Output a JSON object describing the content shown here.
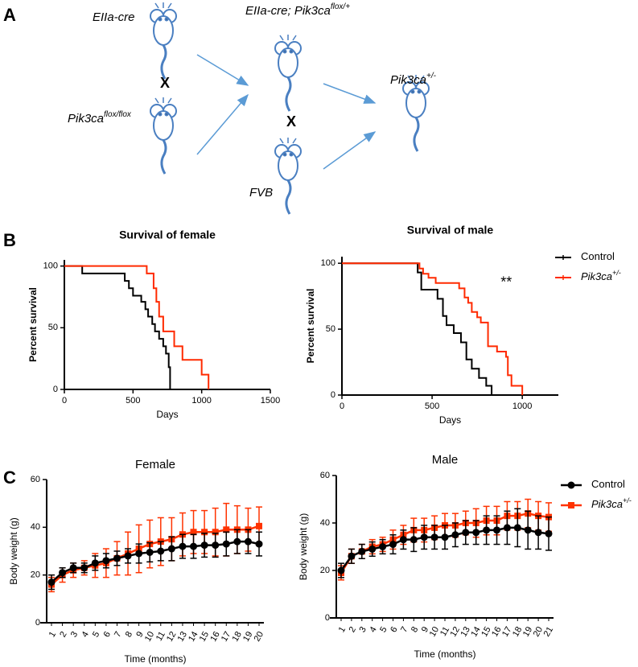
{
  "panel_labels": [
    "A",
    "B",
    "C"
  ],
  "diagram": {
    "parent1": {
      "text": "EIIa-cre"
    },
    "parent2": {
      "text": "Pik3ca",
      "sup": "flox/flox"
    },
    "offspring1": {
      "text": "EIIa-cre; Pik3ca",
      "sup": "flox/+"
    },
    "parent3": {
      "text": "FVB"
    },
    "offspring2": {
      "text": "Pik3ca",
      "sup": "+/-"
    },
    "cross_signs": [
      "X",
      "X"
    ]
  },
  "chart_data": [
    {
      "type": "step",
      "title": "Survival of female",
      "xlabel": "Days",
      "ylabel": "Percent survival",
      "xlim": [
        0,
        1500
      ],
      "xticks": [
        0,
        500,
        1000,
        1500
      ],
      "ylim": [
        0,
        105
      ],
      "yticks": [
        0,
        50,
        100
      ],
      "series": [
        {
          "color": "#000000",
          "x": [
            0,
            130,
            130,
            440,
            440,
            470,
            470,
            500,
            500,
            560,
            560,
            590,
            590,
            610,
            610,
            640,
            640,
            660,
            660,
            690,
            690,
            720,
            720,
            740,
            740,
            760,
            760,
            770,
            770
          ],
          "values": [
            100,
            100,
            94,
            94,
            88,
            88,
            82,
            82,
            76,
            76,
            71,
            71,
            65,
            65,
            59,
            59,
            53,
            53,
            47,
            47,
            41,
            41,
            35,
            35,
            29,
            29,
            18,
            18,
            0
          ]
        },
        {
          "color": "#ff2a00",
          "x": [
            0,
            600,
            600,
            650,
            650,
            670,
            670,
            690,
            690,
            720,
            720,
            800,
            800,
            860,
            860,
            1000,
            1000,
            1050,
            1050
          ],
          "values": [
            100,
            100,
            94,
            94,
            82,
            82,
            71,
            71,
            59,
            59,
            47,
            47,
            35,
            35,
            24,
            24,
            12,
            12,
            0
          ]
        }
      ]
    },
    {
      "type": "step",
      "title": "Survival of male",
      "xlabel": "Days",
      "ylabel": "Percent survival",
      "xlim": [
        0,
        1200
      ],
      "xticks": [
        0,
        500,
        1000
      ],
      "ylim": [
        0,
        105
      ],
      "yticks": [
        0,
        50,
        100
      ],
      "annotation": "**",
      "legend": "right",
      "series": [
        {
          "name": "Control",
          "color": "#000000",
          "x": [
            0,
            420,
            420,
            440,
            440,
            530,
            530,
            560,
            560,
            580,
            580,
            620,
            620,
            660,
            660,
            690,
            690,
            720,
            720,
            760,
            760,
            800,
            800,
            830,
            830
          ],
          "values": [
            100,
            100,
            93,
            93,
            80,
            80,
            73,
            73,
            60,
            60,
            53,
            53,
            47,
            47,
            40,
            40,
            27,
            27,
            20,
            20,
            13,
            13,
            7,
            7,
            0
          ]
        },
        {
          "name": "Pik3ca",
          "name_sup": "+/-",
          "color": "#ff2a00",
          "x": [
            0,
            430,
            430,
            450,
            450,
            480,
            480,
            520,
            520,
            650,
            650,
            680,
            680,
            700,
            700,
            720,
            720,
            750,
            750,
            770,
            770,
            810,
            810,
            860,
            860,
            910,
            910,
            920,
            920,
            940,
            940,
            1000,
            1000
          ],
          "values": [
            100,
            100,
            96,
            96,
            92,
            92,
            89,
            89,
            85,
            85,
            81,
            81,
            74,
            74,
            70,
            70,
            63,
            63,
            59,
            59,
            55,
            55,
            37,
            37,
            33,
            33,
            29,
            29,
            15,
            15,
            7,
            7,
            0
          ]
        }
      ]
    },
    {
      "type": "line",
      "title": "Female",
      "xlabel": "Time (months)",
      "ylabel": "Body weight (g)",
      "categories": [
        1,
        2,
        3,
        4,
        5,
        6,
        7,
        8,
        9,
        10,
        11,
        12,
        13,
        14,
        15,
        16,
        17,
        18,
        19,
        20
      ],
      "ylim": [
        0,
        60
      ],
      "yticks": [
        0,
        20,
        40,
        60
      ],
      "series": [
        {
          "color": "#ff3300",
          "marker": "square",
          "values": [
            16,
            20,
            22,
            23,
            24,
            25,
            27,
            29,
            31,
            33,
            34,
            35,
            37,
            38,
            38,
            38,
            39,
            39,
            39,
            40.5
          ],
          "errors": [
            3,
            3,
            3,
            3,
            5,
            6,
            7,
            9,
            10,
            10,
            10,
            9,
            9,
            9,
            9,
            10,
            11,
            10,
            9,
            8
          ]
        },
        {
          "color": "#000000",
          "marker": "circle",
          "values": [
            17,
            21,
            23,
            23,
            25,
            26,
            27,
            28,
            29,
            29.5,
            30,
            31,
            32,
            32,
            32.5,
            32.5,
            33,
            34,
            34,
            33
          ],
          "errors": [
            3,
            2,
            2,
            2,
            3,
            3,
            3,
            3,
            4,
            4,
            4,
            5,
            5,
            5,
            5,
            5,
            5,
            5,
            5,
            5
          ]
        }
      ]
    },
    {
      "type": "line",
      "title": "Male",
      "xlabel": "Time (months)",
      "ylabel": "Body weight (g)",
      "categories": [
        1,
        2,
        3,
        4,
        5,
        6,
        7,
        8,
        9,
        10,
        11,
        12,
        13,
        14,
        15,
        16,
        17,
        18,
        19,
        20,
        21
      ],
      "ylim": [
        0,
        60
      ],
      "yticks": [
        0,
        20,
        40,
        60
      ],
      "legend": "right",
      "series": [
        {
          "name": "Pik3ca",
          "name_sup": "+/-",
          "color": "#ff3300",
          "marker": "square",
          "values": [
            19,
            26,
            28,
            30,
            31,
            33,
            35,
            37,
            37,
            38,
            39,
            39,
            40,
            40,
            41,
            41,
            43,
            43,
            44,
            43,
            42.5
          ],
          "errors": [
            3,
            3,
            3,
            3,
            3,
            4,
            4,
            5,
            5,
            5,
            5,
            5,
            5,
            6,
            6,
            6,
            6,
            6,
            6,
            6,
            6
          ]
        },
        {
          "name": "Control",
          "color": "#000000",
          "marker": "circle",
          "values": [
            20,
            26,
            28,
            29,
            30,
            31,
            33,
            33,
            34,
            34,
            34,
            35,
            36,
            36,
            37,
            37,
            38,
            38,
            37,
            36,
            35.5
          ],
          "errors": [
            3,
            3,
            3,
            3,
            3,
            4,
            4,
            5,
            5,
            5,
            5,
            5,
            5,
            5,
            6,
            6,
            7,
            8,
            8,
            7,
            7
          ]
        }
      ]
    }
  ]
}
